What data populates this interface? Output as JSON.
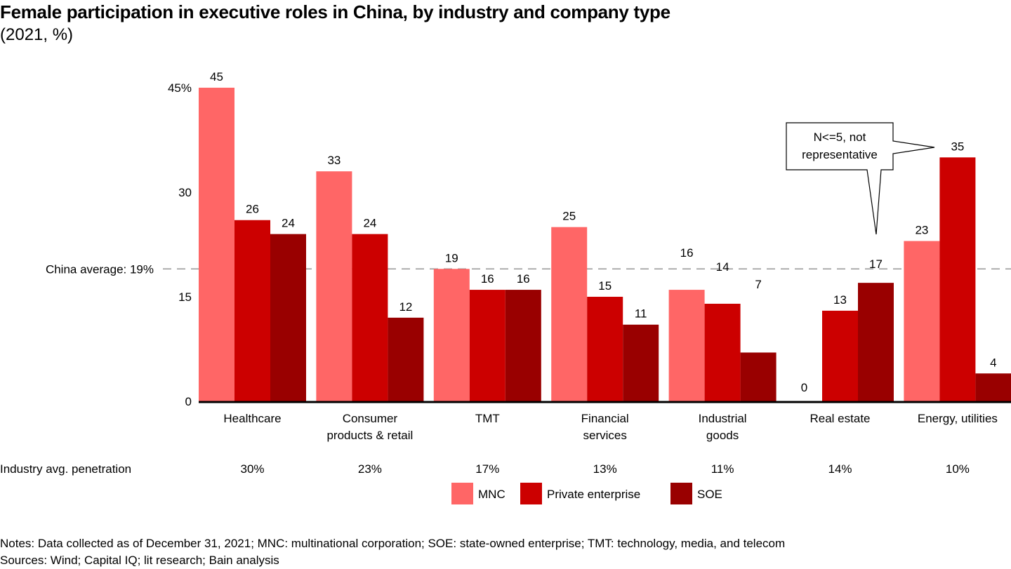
{
  "title": "Female participation in executive roles in China, by industry and company type",
  "subtitle": "(2021, %)",
  "chart_data": {
    "type": "bar",
    "title": "Female participation in executive roles in China, by industry and company type",
    "subtitle": "(2021, %)",
    "categories": [
      "Healthcare",
      "Consumer products & retail",
      "TMT",
      "Financial services",
      "Industrial goods",
      "Real estate",
      "Energy, utilities"
    ],
    "category_lines": [
      [
        "Healthcare"
      ],
      [
        "Consumer",
        "products & retail"
      ],
      [
        "TMT"
      ],
      [
        "Financial",
        "services"
      ],
      [
        "Industrial",
        "goods"
      ],
      [
        "Real estate"
      ],
      [
        "Energy, utilities"
      ]
    ],
    "series": [
      {
        "name": "MNC",
        "color": "#FF6666",
        "values": [
          45,
          33,
          19,
          25,
          16,
          0,
          23
        ]
      },
      {
        "name": "Private enterprise",
        "color": "#CC0000",
        "values": [
          26,
          24,
          16,
          15,
          14,
          13,
          35
        ]
      },
      {
        "name": "SOE",
        "color": "#990000",
        "values": [
          24,
          12,
          16,
          11,
          7,
          17,
          4
        ]
      }
    ],
    "data_labels": [
      [
        "45",
        "26",
        "24"
      ],
      [
        "33",
        "24",
        "12"
      ],
      [
        "19",
        "16",
        "16"
      ],
      [
        "25",
        "15",
        "11"
      ],
      [
        "16",
        "14",
        "7"
      ],
      [
        "0",
        "13",
        "17"
      ],
      [
        "23",
        "35",
        "4"
      ]
    ],
    "ylim": [
      0,
      45
    ],
    "yticks": [
      0,
      15,
      30,
      45
    ],
    "ytick_labels": [
      "0",
      "15",
      "30",
      "45%"
    ],
    "xlabel": "",
    "ylabel": "",
    "grid": false,
    "reference_line": {
      "value": 19,
      "label": "China average: 19%",
      "style": "dashed",
      "color": "#808080"
    },
    "annotation": {
      "text_lines": [
        "N<=5, not",
        "representative"
      ],
      "points_to": "Real estate (MNC) and Energy, utilities (Private enterprise)"
    },
    "industry_avg": {
      "label": "Industry avg. penetration",
      "values": [
        "30%",
        "23%",
        "17%",
        "13%",
        "11%",
        "14%",
        "10%"
      ]
    },
    "legend": {
      "position": "bottom-center",
      "entries": [
        "MNC",
        "Private enterprise",
        "SOE"
      ]
    }
  },
  "notes": "Notes: Data collected as of December 31, 2021; MNC: multinational corporation; SOE: state-owned enterprise; TMT: technology, media, and telecom",
  "sources": "Sources: Wind; Capital IQ; lit research; Bain analysis"
}
